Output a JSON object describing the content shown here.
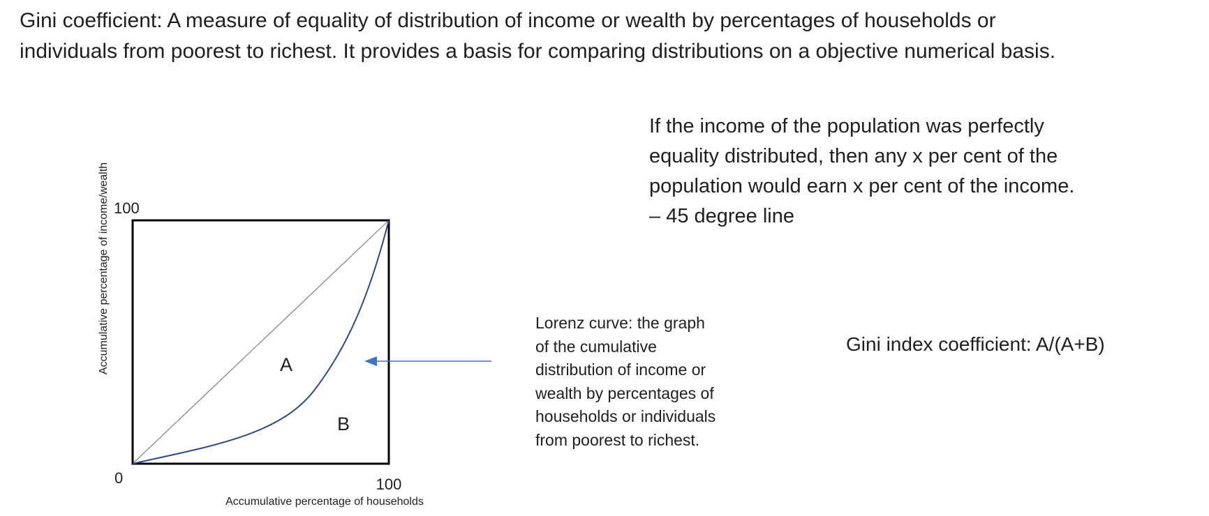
{
  "title": {
    "line1": "Gini coefficient: A measure of equality of distribution of income or wealth by percentages of households or",
    "line2": "individuals from poorest to richest. It provides a basis for comparing distributions on a objective numerical basis."
  },
  "equality_text": {
    "line1": "If the income of the population was perfectly",
    "line2": "equality distributed, then any x per cent of the",
    "line3": "population would earn x per cent of the income.",
    "line4": "– 45 degree line"
  },
  "lorenz_definition": {
    "line1": "Lorenz curve: the graph",
    "line2": "of the cumulative",
    "line3": "distribution of income or",
    "line4": "wealth by percentages of",
    "line5": "households or individuals",
    "line6": "from poorest to richest."
  },
  "gini_formula": "Gini index coefficient: A/(A+B)",
  "diagram": {
    "y_axis_label": "Accumulative percentage of income/wealth",
    "x_axis_label": "Accumulative percentage of households",
    "origin_label": "0",
    "y_max_label": "100",
    "x_max_label": "100",
    "region_a_label": "A",
    "region_b_label": "B",
    "colors": {
      "lorenz_curve": "#2f4a8a",
      "arrow": "#4472c4",
      "equality_line": "#808080",
      "frame": "#000000"
    }
  }
}
